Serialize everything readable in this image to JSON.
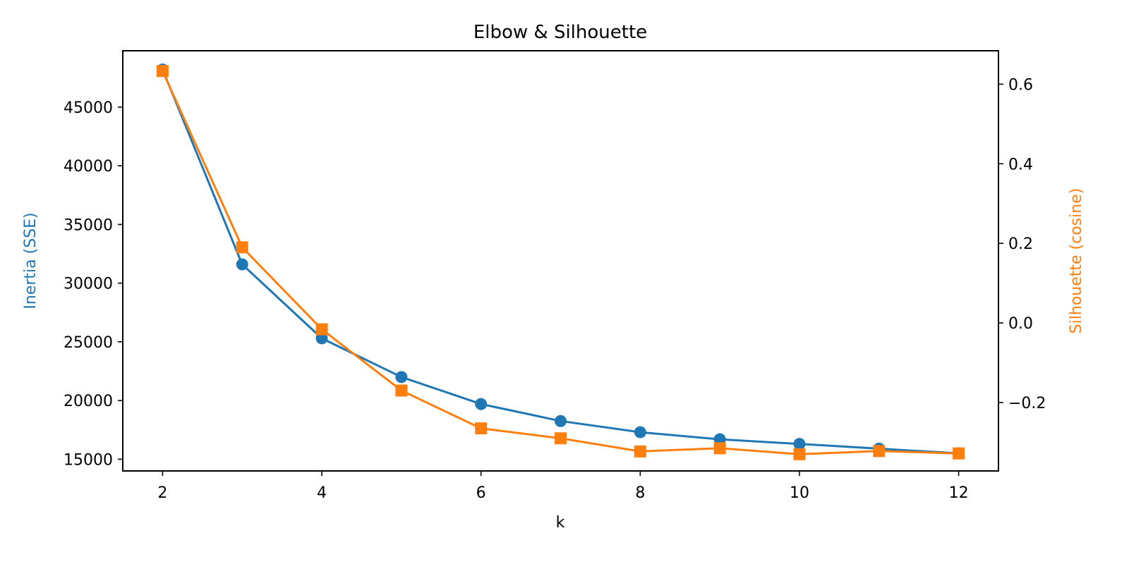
{
  "chart_data": {
    "type": "line",
    "title": "Elbow & Silhouette",
    "xlabel": "k",
    "x": [
      2,
      3,
      4,
      5,
      6,
      7,
      8,
      9,
      10,
      11,
      12
    ],
    "xlim": [
      1.5,
      12.5
    ],
    "xticks": [
      2,
      4,
      6,
      8,
      10,
      12
    ],
    "grid": false,
    "legend": "none",
    "series": [
      {
        "axis": "left",
        "marker": "circle",
        "color": "#1f77b4",
        "values": [
          48200,
          31600,
          25300,
          22000,
          19700,
          18250,
          17300,
          16700,
          16300,
          15900,
          15500
        ]
      },
      {
        "axis": "right",
        "marker": "square",
        "color": "#ff7f0e",
        "values": [
          0.633,
          0.19,
          -0.016,
          -0.17,
          -0.265,
          -0.29,
          -0.323,
          -0.315,
          -0.33,
          -0.322,
          -0.328
        ]
      }
    ],
    "left_axis": {
      "label": "Inertia (SSE)",
      "color": "#1f77b4",
      "ylim": [
        14000,
        49800
      ],
      "ticks": [
        15000,
        20000,
        25000,
        30000,
        35000,
        40000,
        45000
      ]
    },
    "right_axis": {
      "label": "Silhouette (cosine)",
      "color": "#ff7f0e",
      "ylim": [
        -0.372,
        0.684
      ],
      "ticks": [
        -0.2,
        0.0,
        0.2,
        0.4,
        0.6
      ],
      "tick_labels": [
        "−0.2",
        "0.0",
        "0.2",
        "0.4",
        "0.6"
      ]
    }
  }
}
